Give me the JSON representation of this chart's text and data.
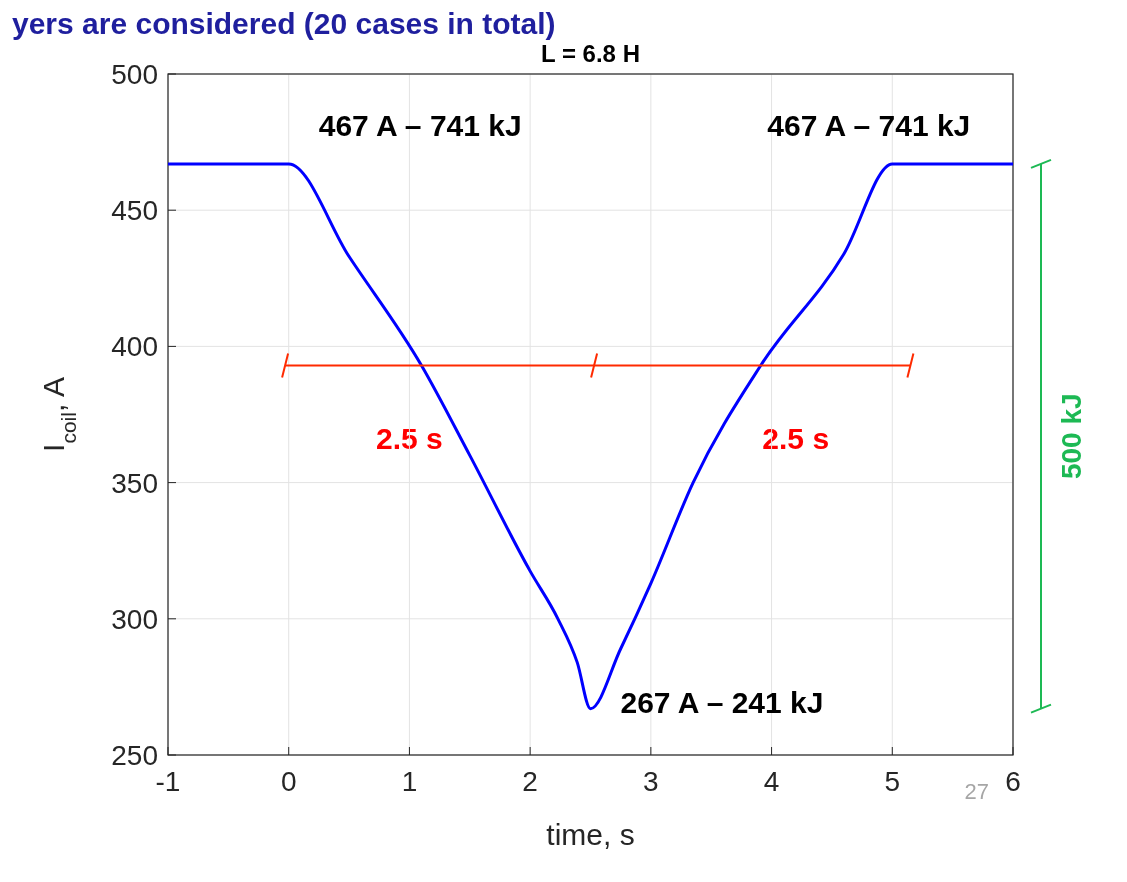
{
  "chart_data": {
    "type": "line",
    "title": "L = 6.8 H",
    "xlabel": "time, s",
    "ylabel": "I$_{coil}$, A",
    "x": [
      -1,
      0,
      0.5,
      1.1,
      1.5,
      2,
      2.23,
      2.39,
      2.5,
      2.75,
      3,
      3.35,
      3.91,
      4.6,
      5,
      6
    ],
    "series": [
      {
        "color": "#0000ff",
        "values": [
          467,
          467,
          433,
          393,
          360,
          317.5,
          300,
          284,
          267,
          289,
          313,
          350,
          393,
          434,
          467,
          467
        ]
      },
      {
        "color": "#ff2a00",
        "x": [
          -0.03,
          2.53,
          5.15
        ],
        "values": [
          393,
          393,
          393
        ]
      }
    ],
    "xlim": [
      -1,
      6
    ],
    "ylim": [
      250,
      500
    ],
    "xticks": [
      -1,
      0,
      1,
      2,
      3,
      4,
      5,
      6
    ],
    "yticks": [
      250,
      300,
      350,
      400,
      450,
      500
    ],
    "grid": true,
    "marker": "none",
    "line_style": "solid",
    "annotations": [
      {
        "text": "467 A – 741 kJ",
        "x": 0,
        "y": 467
      },
      {
        "text": "467 A – 741 kJ",
        "x": 5,
        "y": 467
      },
      {
        "text": "267 A – 241 kJ",
        "x": 2.5,
        "y": 267
      },
      "2.5 s",
      "2.5 s",
      "500 kJ",
      "yers are considered (20 cases in total)",
      "27"
    ]
  }
}
